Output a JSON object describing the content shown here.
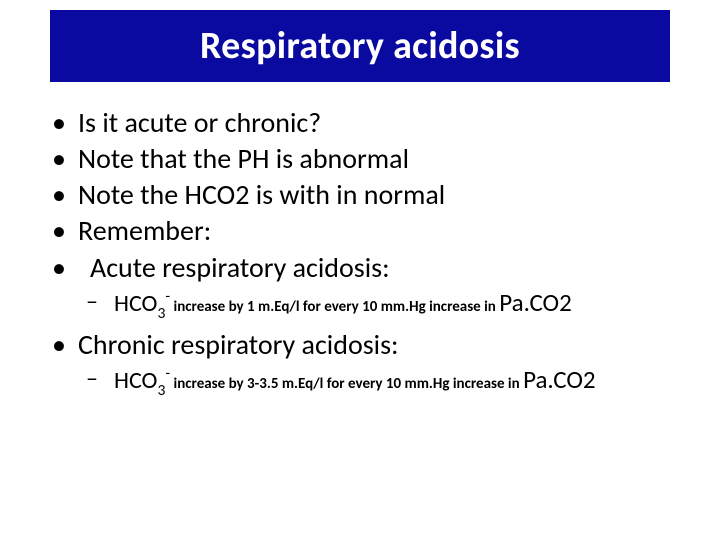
{
  "colors": {
    "title_bg": "#0a0aa0",
    "title_fg": "#ffffff",
    "text": "#000000",
    "slide_bg": "#ffffff"
  },
  "title": "Respiratory acidosis",
  "bullets": {
    "b1": "Is it acute or chronic?",
    "b2": "Note that the PH is abnormal",
    "b3": "Note the HCO2 is with in normal",
    "b4": "Remember:",
    "b5": "Acute respiratory acidosis:"
  },
  "acute_rule": {
    "hco3_label": "HCO",
    "hco3_sub": "3",
    "hco3_sup": "-",
    "text": " increase by 1 m.Eq/l for every 10 mm.Hg increase  in ",
    "end": "Pa.CO2"
  },
  "chronic_label": "Chronic respiratory acidosis:",
  "chronic_rule": {
    "hco3_label": "HCO",
    "hco3_sub": "3",
    "hco3_sup": "-",
    "text": " increase by 3-3.5 m.Eq/l for every 10 mm.Hg increase  in ",
    "end": "Pa.CO2"
  }
}
